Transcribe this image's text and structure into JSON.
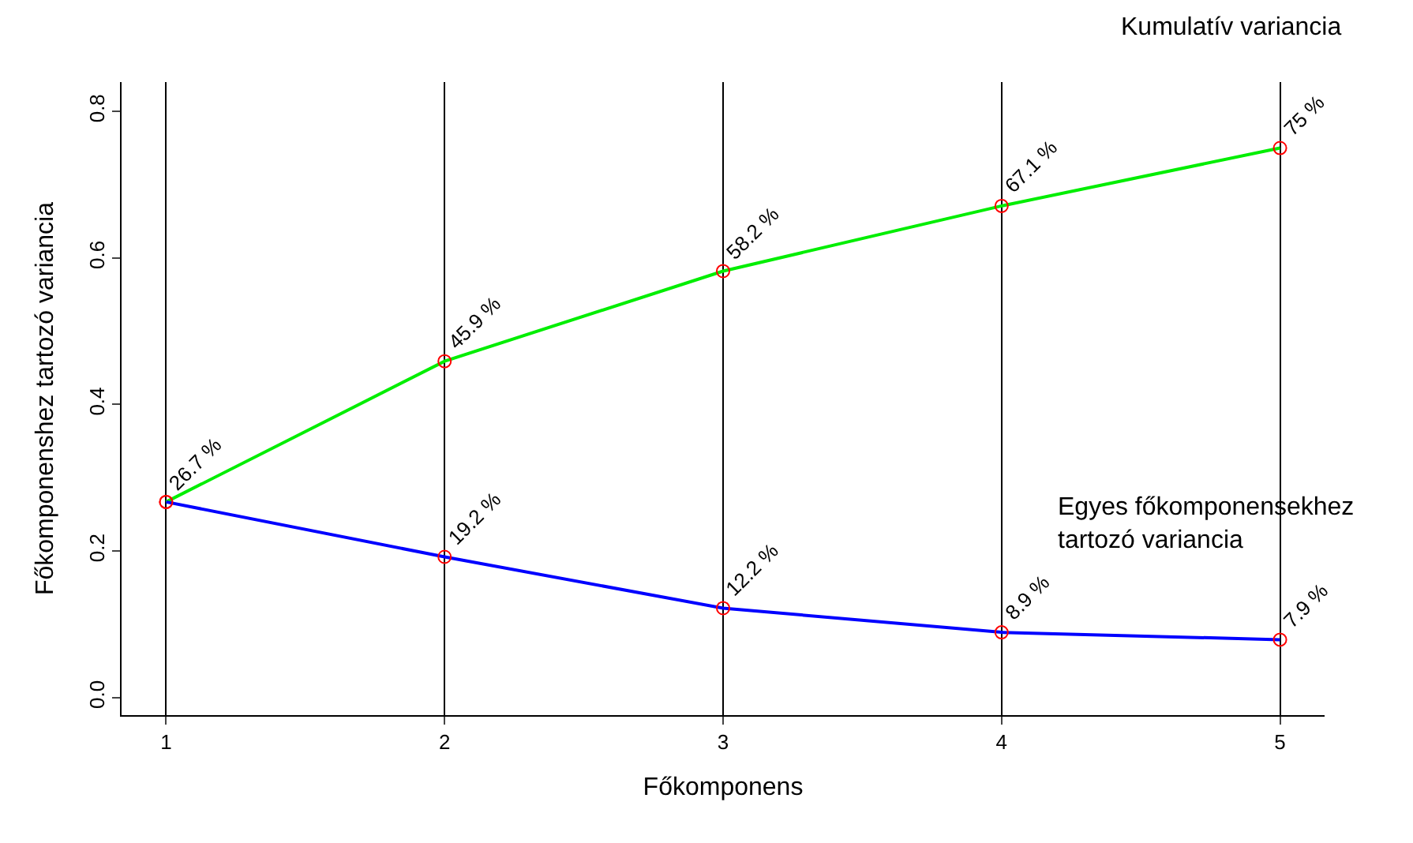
{
  "chart_data": {
    "type": "line",
    "xlabel": "Főkomponens",
    "ylabel": "Főkomponenshez tartozó variancia",
    "x": [
      1,
      2,
      3,
      4,
      5
    ],
    "series": [
      {
        "color": "#00ee00",
        "values": [
          0.267,
          0.459,
          0.582,
          0.671,
          0.75
        ],
        "value_labels": [
          "26.7 %",
          "45.9 %",
          "58.2 %",
          "67.1 %",
          "75 %"
        ]
      },
      {
        "color": "#0000ff",
        "values": [
          0.267,
          0.192,
          0.122,
          0.089,
          0.079
        ],
        "value_labels": [
          null,
          "19.2 %",
          "12.2 %",
          "8.9 %",
          "7.9 %"
        ]
      }
    ],
    "annotations": [
      "Kumulatív variancia",
      "Egyes főkomponensekhez\ntartozó variancia"
    ],
    "xlim": [
      0.84,
      5.16
    ],
    "xticks": [
      1,
      2,
      3,
      4,
      5
    ],
    "ylim": [
      -0.024,
      0.84
    ],
    "yticks": [
      {
        "value": 0,
        "label": "0.0"
      },
      {
        "value": 0.2,
        "label": "0.2"
      },
      {
        "value": 0.4,
        "label": "0.4"
      },
      {
        "value": 0.6,
        "label": "0.6"
      },
      {
        "value": 0.8,
        "label": "0.8"
      }
    ],
    "grid": "x",
    "marker": "circle",
    "line_style": "solid"
  }
}
